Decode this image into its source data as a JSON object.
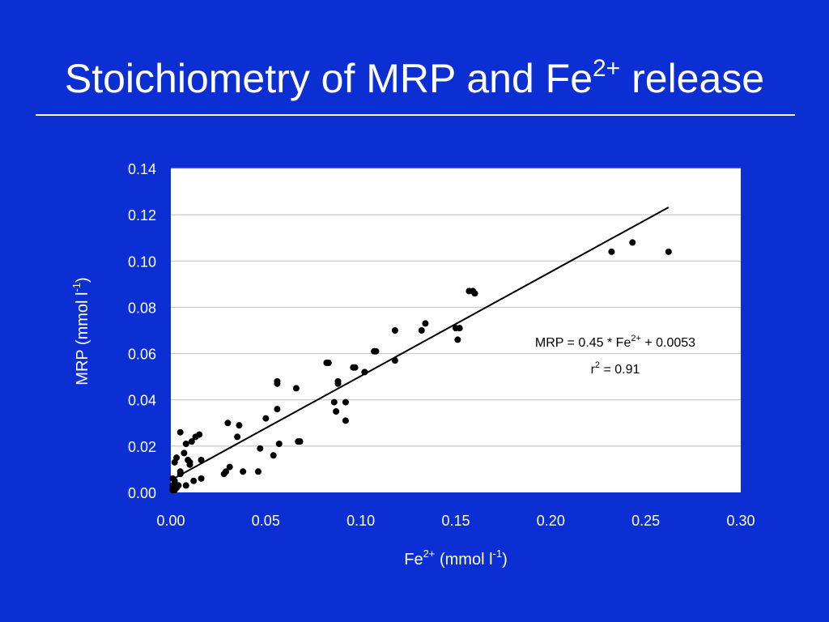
{
  "title": {
    "main": "Stoichiometry of MRP and Fe",
    "superscript": "2+",
    "suffix": " release"
  },
  "colors": {
    "background": "#0b2fd3",
    "plot_background": "#ffffff",
    "gridline": "#c0c0c0",
    "marker": "#000000",
    "text": "#ffffff"
  },
  "chart_data": {
    "type": "scatter",
    "xlabel": {
      "base": "Fe",
      "sup": "2+",
      "rest": " (mmol l",
      "unit_sup": "-1",
      "end": ")"
    },
    "ylabel": {
      "base": "MRP (mmol l",
      "sup": "-1",
      "end": ")"
    },
    "xlim": [
      0,
      0.3
    ],
    "ylim": [
      0,
      0.14
    ],
    "xticks": [
      "0.00",
      "0.05",
      "0.10",
      "0.15",
      "0.20",
      "0.25",
      "0.30"
    ],
    "yticks": [
      "0.00",
      "0.02",
      "0.04",
      "0.06",
      "0.08",
      "0.10",
      "0.12",
      "0.14"
    ],
    "grid": "horizontal",
    "annotation": {
      "line1": {
        "a": "MRP = 0.45 * Fe",
        "sup": "2+",
        "b": " + 0.0053"
      },
      "line2": {
        "a": "r",
        "sup": "2",
        "b": " = 0.91"
      }
    },
    "trendline": {
      "slope": 0.45,
      "intercept": 0.0053,
      "x_range": [
        0.0,
        0.262
      ]
    },
    "points": [
      [
        0.001,
        0.001
      ],
      [
        0.001,
        0.002
      ],
      [
        0.002,
        0.001
      ],
      [
        0.001,
        0.003
      ],
      [
        0.002,
        0.004
      ],
      [
        0.003,
        0.002
      ],
      [
        0.002,
        0.005
      ],
      [
        0.001,
        0.006
      ],
      [
        0.003,
        0.003
      ],
      [
        0.004,
        0.003
      ],
      [
        0.002,
        0.013
      ],
      [
        0.003,
        0.015
      ],
      [
        0.005,
        0.008
      ],
      [
        0.005,
        0.009
      ],
      [
        0.005,
        0.026
      ],
      [
        0.007,
        0.017
      ],
      [
        0.008,
        0.021
      ],
      [
        0.008,
        0.003
      ],
      [
        0.009,
        0.014
      ],
      [
        0.01,
        0.013
      ],
      [
        0.01,
        0.012
      ],
      [
        0.011,
        0.022
      ],
      [
        0.012,
        0.005
      ],
      [
        0.013,
        0.024
      ],
      [
        0.015,
        0.025
      ],
      [
        0.016,
        0.014
      ],
      [
        0.016,
        0.006
      ],
      [
        0.028,
        0.008
      ],
      [
        0.029,
        0.009
      ],
      [
        0.03,
        0.03
      ],
      [
        0.031,
        0.011
      ],
      [
        0.035,
        0.024
      ],
      [
        0.036,
        0.029
      ],
      [
        0.038,
        0.009
      ],
      [
        0.046,
        0.009
      ],
      [
        0.047,
        0.019
      ],
      [
        0.05,
        0.032
      ],
      [
        0.054,
        0.016
      ],
      [
        0.056,
        0.036
      ],
      [
        0.056,
        0.047
      ],
      [
        0.056,
        0.048
      ],
      [
        0.057,
        0.021
      ],
      [
        0.066,
        0.045
      ],
      [
        0.067,
        0.022
      ],
      [
        0.068,
        0.022
      ],
      [
        0.082,
        0.056
      ],
      [
        0.083,
        0.056
      ],
      [
        0.086,
        0.039
      ],
      [
        0.087,
        0.035
      ],
      [
        0.088,
        0.047
      ],
      [
        0.088,
        0.048
      ],
      [
        0.092,
        0.039
      ],
      [
        0.092,
        0.031
      ],
      [
        0.096,
        0.054
      ],
      [
        0.097,
        0.054
      ],
      [
        0.102,
        0.052
      ],
      [
        0.107,
        0.061
      ],
      [
        0.108,
        0.061
      ],
      [
        0.118,
        0.07
      ],
      [
        0.118,
        0.057
      ],
      [
        0.132,
        0.07
      ],
      [
        0.134,
        0.073
      ],
      [
        0.15,
        0.071
      ],
      [
        0.151,
        0.066
      ],
      [
        0.152,
        0.071
      ],
      [
        0.157,
        0.087
      ],
      [
        0.159,
        0.087
      ],
      [
        0.16,
        0.086
      ],
      [
        0.232,
        0.104
      ],
      [
        0.243,
        0.108
      ],
      [
        0.262,
        0.104
      ]
    ]
  }
}
